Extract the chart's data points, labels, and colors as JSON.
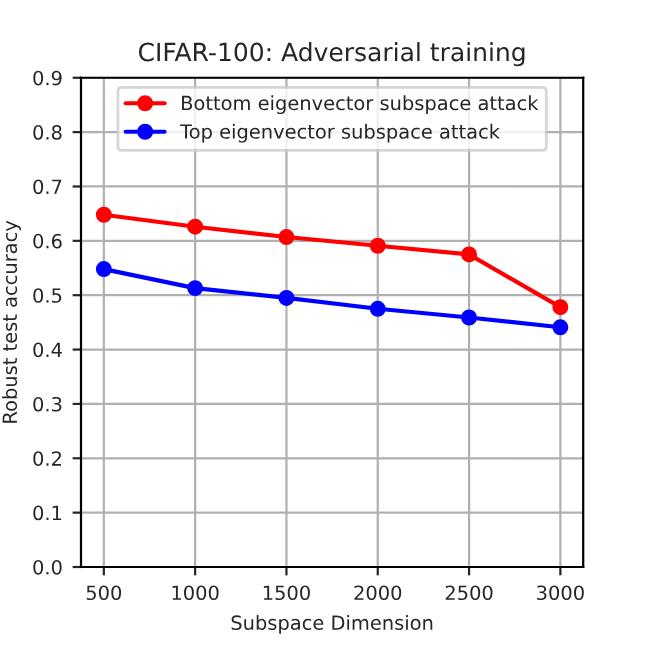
{
  "chart_data": {
    "type": "line",
    "title": "CIFAR-100: Adversarial training",
    "xlabel": "Subspace Dimension",
    "ylabel": "Robust test accuracy",
    "x": [
      500,
      1000,
      1500,
      2000,
      2500,
      3000
    ],
    "series": [
      {
        "name": "Bottom eigenvector subspace attack",
        "color": "#ff0000",
        "values": [
          0.648,
          0.626,
          0.607,
          0.591,
          0.575,
          0.478
        ]
      },
      {
        "name": "Top eigenvector subspace attack",
        "color": "#0000ff",
        "values": [
          0.548,
          0.513,
          0.495,
          0.475,
          0.459,
          0.441
        ]
      }
    ],
    "xlim": [
      375,
      3125
    ],
    "xticks": [
      500,
      1000,
      1500,
      2000,
      2500,
      3000
    ],
    "ylim": [
      0,
      0.9
    ],
    "yticks": [
      {
        "value": 0,
        "label": "0.0"
      },
      0.1,
      0.2,
      0.3,
      0.4,
      0.5,
      0.6,
      0.7,
      0.8,
      0.9
    ],
    "grid": true,
    "legend": "top",
    "marker": "circle",
    "line_style": "solid"
  }
}
